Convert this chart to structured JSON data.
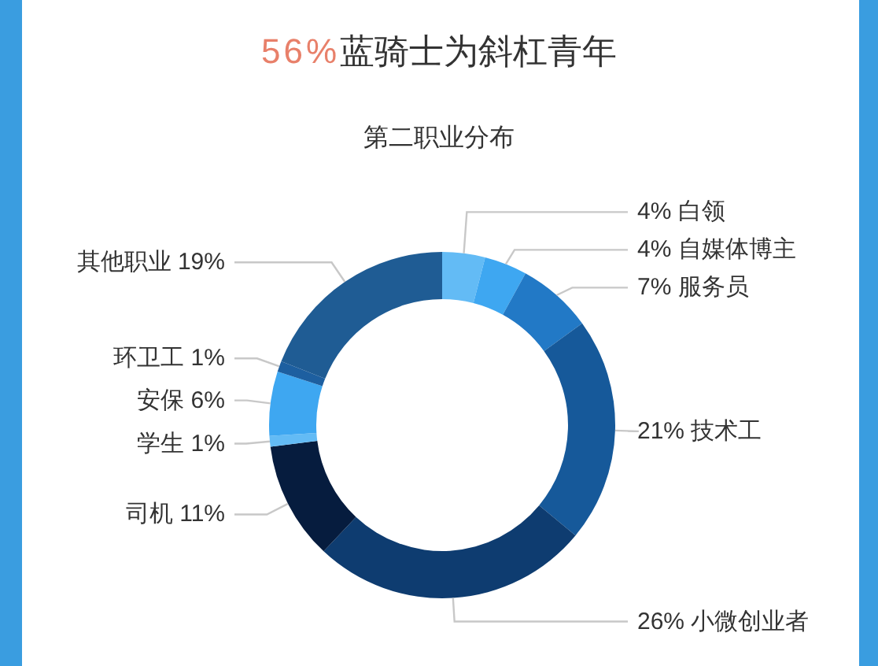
{
  "chart_data": {
    "type": "donut",
    "title": "56%蓝骑士为斜杠青年",
    "subtitle": "第二职业分布",
    "categories": [
      "白领",
      "自媒体博主",
      "服务员",
      "技术工",
      "小微创业者",
      "司机",
      "学生",
      "安保",
      "环卫工",
      "其他职业"
    ],
    "values": [
      4,
      4,
      7,
      21,
      26,
      11,
      1,
      6,
      1,
      19
    ],
    "value_labels": [
      "4%",
      "4%",
      "7%",
      "21%",
      "26%",
      "11%",
      "1%",
      "6%",
      "1%",
      "19%"
    ],
    "colors": [
      "#63bbf5",
      "#3ea7f1",
      "#2279c6",
      "#16599a",
      "#0e3c70",
      "#061c3e",
      "#63bbf5",
      "#3ea7f1",
      "#1d5fa0",
      "#1f5c94"
    ]
  }
}
